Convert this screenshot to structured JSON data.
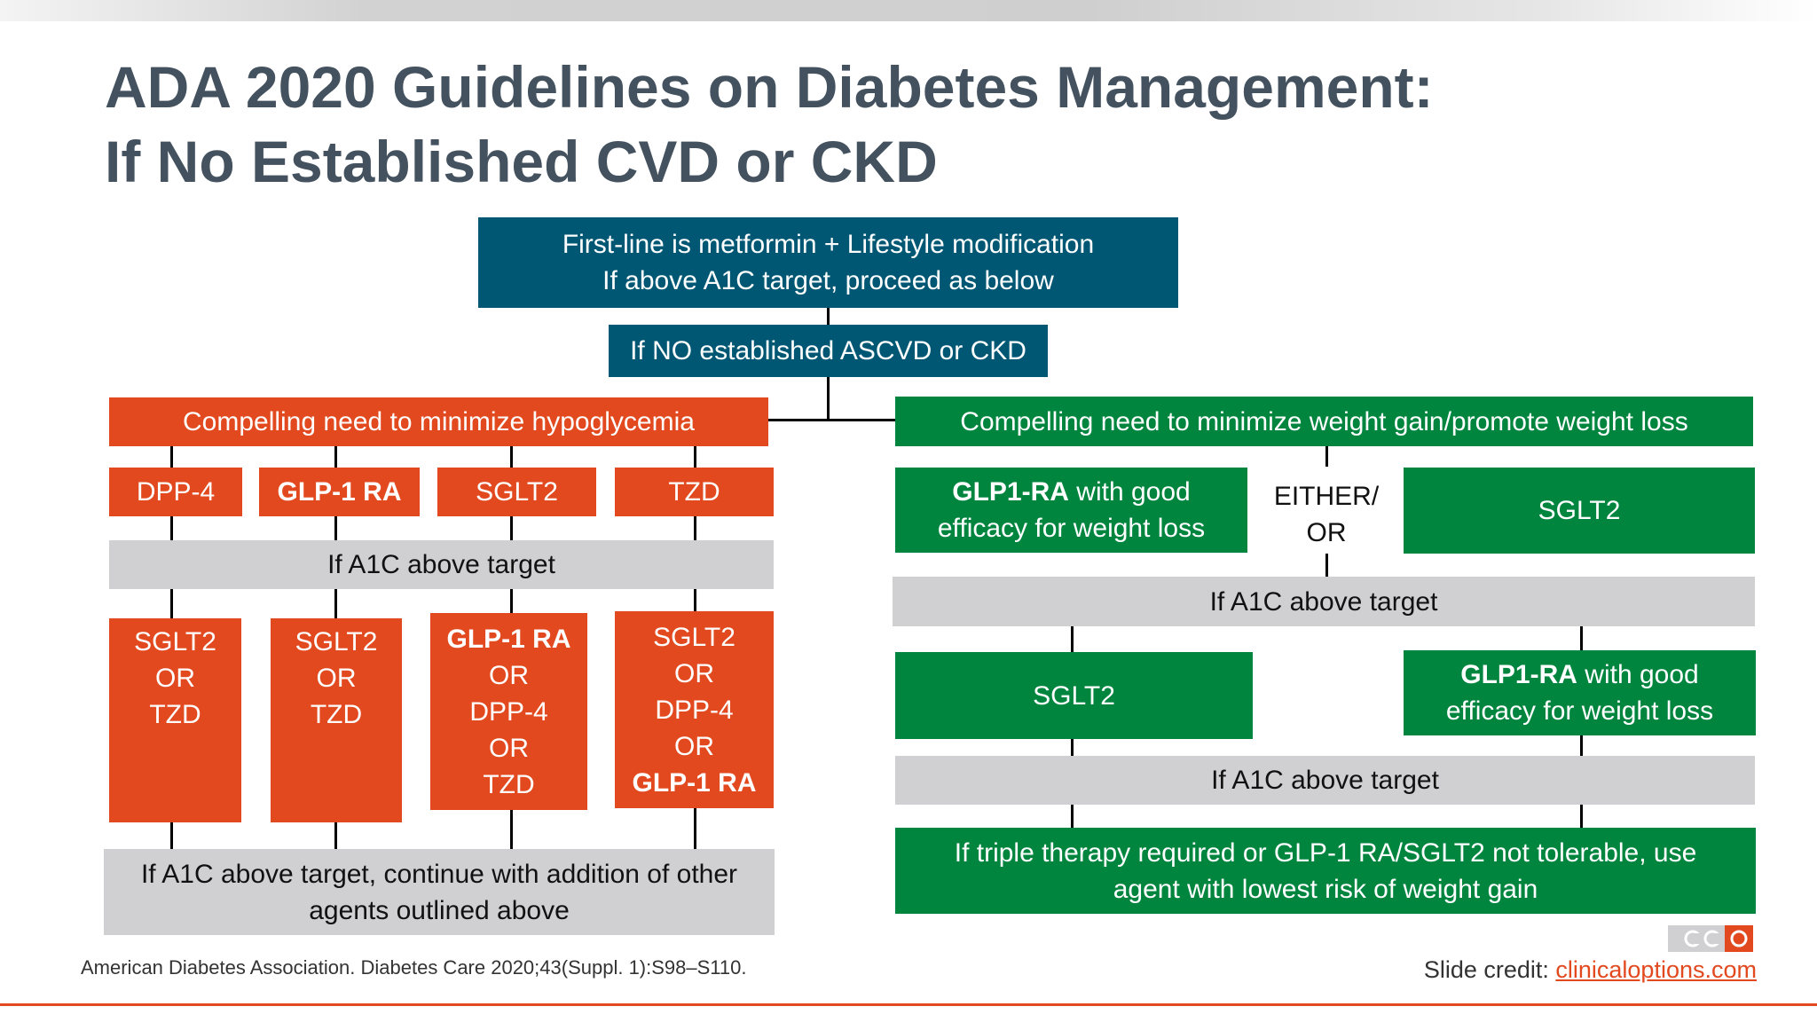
{
  "title": {
    "line1": "ADA 2020 Guidelines on Diabetes Management:",
    "line2": "If No Established CVD or CKD"
  },
  "top_box": {
    "line1": "First-line is metformin + Lifestyle modification",
    "line2": "If above A1C target, proceed as below"
  },
  "branch_box": "If NO established ASCVD or CKD",
  "left": {
    "header": "Compelling need to minimize hypoglycemia",
    "row1": [
      "DPP-4",
      "GLP-1 RA",
      "SGLT2",
      "TZD"
    ],
    "a1c_label": "If A1C above target",
    "col1": [
      "SGLT2",
      "OR",
      "TZD"
    ],
    "col2": [
      "SGLT2",
      "OR",
      "TZD"
    ],
    "col3": [
      "GLP-1 RA",
      "OR",
      "DPP-4",
      "OR",
      "TZD"
    ],
    "col4": [
      "SGLT2",
      "OR",
      "DPP-4",
      "OR",
      "GLP-1 RA"
    ],
    "bottom_line1": "If A1C above target, continue with addition of other",
    "bottom_line2": "agents outlined above"
  },
  "right": {
    "header": "Compelling need to minimize weight gain/promote weight loss",
    "glp1_bold": "GLP1-RA",
    "glp1_rest1": " with good",
    "glp1_line2": "efficacy for weight loss",
    "either_line1": "EITHER/",
    "either_line2": "OR",
    "sglt2": "SGLT2",
    "a1c_label_1": "If A1C above target",
    "sglt2_second": "SGLT2",
    "glp1_second_bold": "GLP1-RA",
    "glp1_second_rest1": " with good",
    "glp1_second_line2": "efficacy for weight loss",
    "a1c_label_2": "If A1C above target",
    "final_line1": "If triple therapy required or GLP-1 RA/SGLT2 not tolerable, use",
    "final_line2": "agent with lowest risk of weight gain"
  },
  "footer": {
    "reference": "American Diabetes Association. Diabetes Care 2020;43(Suppl. 1):S98–S110.",
    "credit_prefix": "Slide credit: ",
    "credit_link": "clinicaloptions.com"
  },
  "colors": {
    "teal": "#005774",
    "orange": "#e2491f",
    "green": "#00853e",
    "gray": "#d0d0d3",
    "title": "#44525f"
  },
  "icons": {
    "logo": "cco-logo"
  }
}
